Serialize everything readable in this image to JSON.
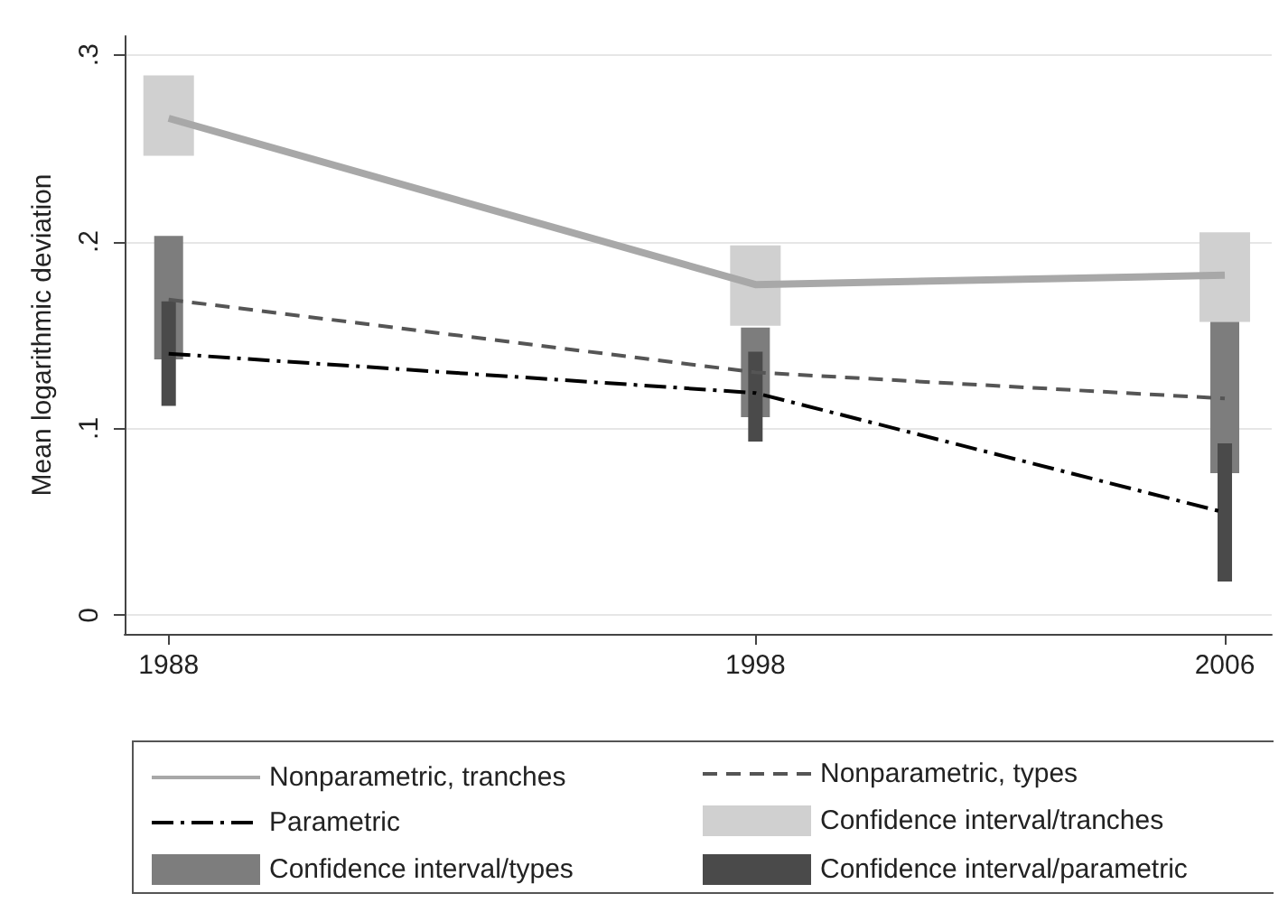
{
  "chart_data": {
    "type": "line",
    "ylabel": "Mean logarithmic deviation",
    "x": [
      1988,
      1998,
      2006
    ],
    "xlim": [
      1987.25,
      2006.8
    ],
    "xticks": [
      1988,
      1998,
      2006
    ],
    "ylim": [
      -0.01,
      0.31
    ],
    "yticks": [
      {
        "value": 0,
        "label": "0"
      },
      {
        "value": 0.1,
        "label": ".1"
      },
      {
        "value": 0.2,
        "label": ".2"
      },
      {
        "value": 0.3,
        "label": ".3"
      }
    ],
    "grid": "y",
    "legend": "bottom",
    "marker": "none",
    "series": [
      {
        "name": "Nonparametric, tranches",
        "color": "#a8a8a8",
        "line_style": "solid",
        "values": [
          0.266,
          0.177,
          0.182
        ]
      },
      {
        "name": "Nonparametric, types",
        "color": "#555555",
        "line_style": "dashed",
        "values": [
          0.169,
          0.13,
          0.116
        ]
      },
      {
        "name": "Parametric",
        "color": "#000000",
        "line_style": "dashdot",
        "values": [
          0.14,
          0.119,
          0.055
        ]
      },
      {
        "name": "Confidence interval/tranches",
        "type": "bar",
        "color": "#d0d0d0",
        "base": [
          0.246,
          0.155,
          0.157
        ],
        "values": [
          0.043,
          0.043,
          0.048
        ]
      },
      {
        "name": "Confidence interval/types",
        "type": "bar",
        "color": "#7d7d7d",
        "base": [
          0.137,
          0.106,
          0.076
        ],
        "values": [
          0.066,
          0.048,
          0.081
        ]
      },
      {
        "name": "Confidence interval/parametric",
        "type": "bar",
        "color": "#4a4a4a",
        "base": [
          0.112,
          0.093,
          0.018
        ],
        "values": [
          0.056,
          0.048,
          0.074
        ]
      }
    ]
  }
}
